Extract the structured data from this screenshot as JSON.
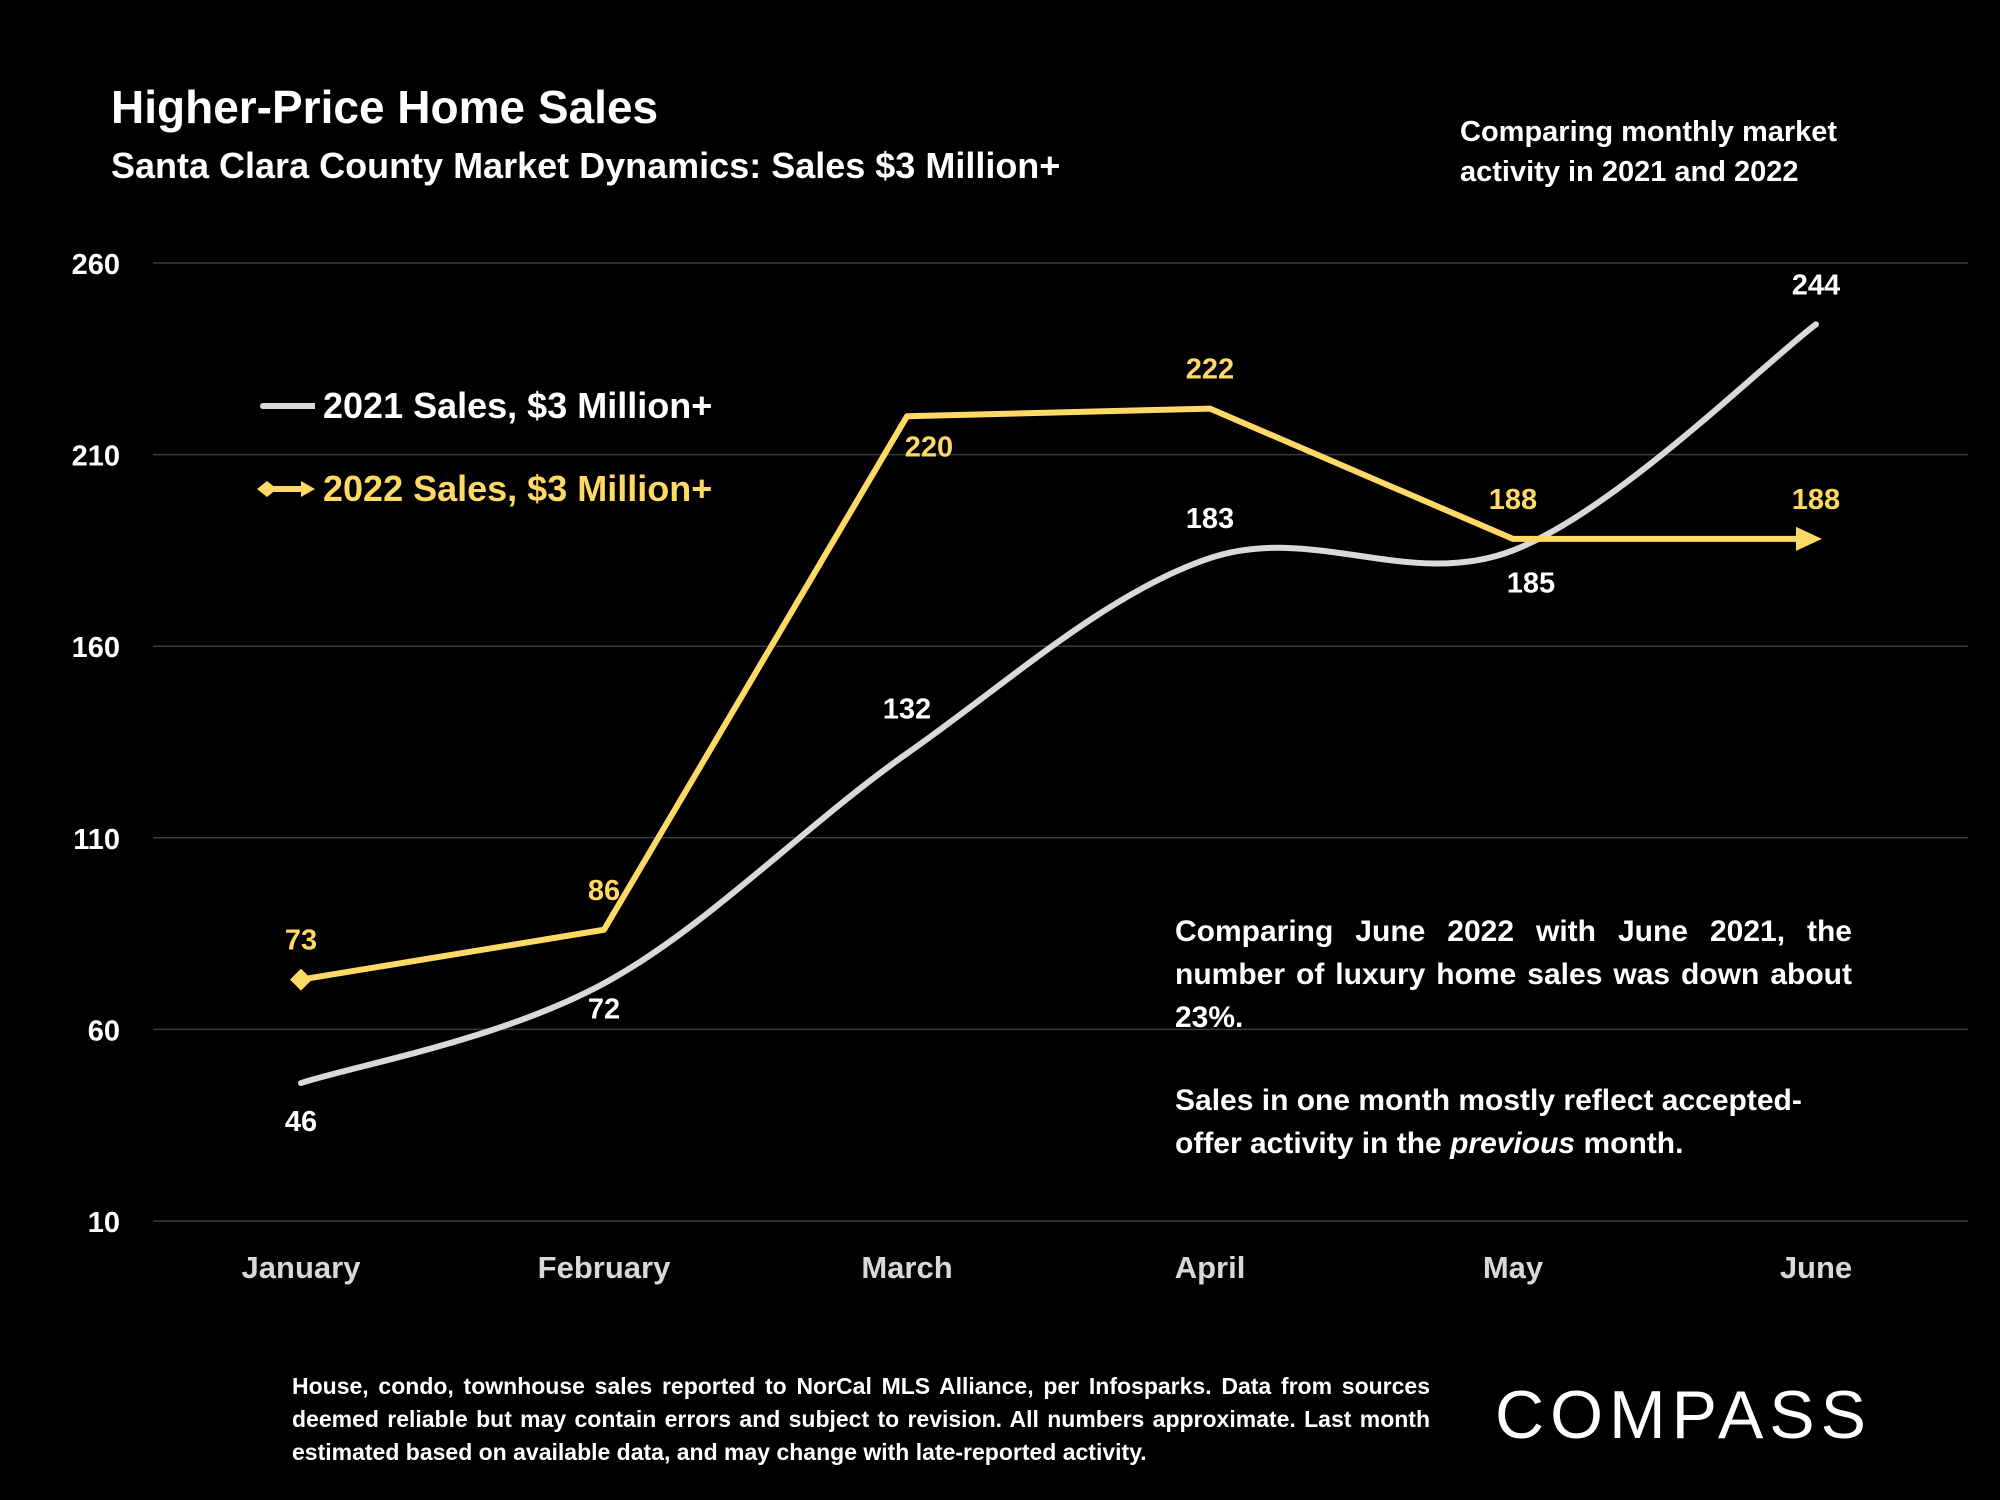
{
  "header": {
    "title": "Higher-Price Home Sales",
    "subtitle": "Santa Clara County Market Dynamics: Sales $3 Million+",
    "side_note": "Comparing monthly market activity in 2021 and 2022"
  },
  "annotation": {
    "line1": "Comparing June 2022 with June 2021, the number of luxury home sales was down about 23%.",
    "line2_pre": "Sales in one month mostly reflect accepted-offer activity in the ",
    "line2_em": "previous",
    "line2_post": " month."
  },
  "footnote": "House, condo, townhouse sales reported to NorCal MLS Alliance, per Infosparks. Data from sources deemed reliable but may contain errors and subject to revision. All numbers approximate. Last month estimated based on available data, and may change with late-reported activity.",
  "logo": "COMPASS",
  "colors": {
    "background": "#000000",
    "series_2021": "#d9d9d9",
    "series_2022": "#ffd966",
    "gridline": "#3a3a3a"
  },
  "chart_data": {
    "type": "line",
    "title": "Higher-Price Home Sales",
    "categories": [
      "January",
      "February",
      "March",
      "April",
      "May",
      "June"
    ],
    "ylim": [
      10,
      260
    ],
    "yticks": [
      10,
      60,
      110,
      160,
      210,
      260
    ],
    "grid": true,
    "legend_position": "top-left",
    "series": [
      {
        "name": "2021 Sales, $3 Million+",
        "values": [
          46,
          72,
          132,
          183,
          185,
          244
        ],
        "smooth": true,
        "marker": "none",
        "color": "#d9d9d9"
      },
      {
        "name": "2022 Sales, $3 Million+",
        "values": [
          73,
          86,
          220,
          222,
          188,
          188
        ],
        "smooth": false,
        "marker": "diamond",
        "end_marker": "arrow",
        "color": "#ffd966"
      }
    ]
  }
}
